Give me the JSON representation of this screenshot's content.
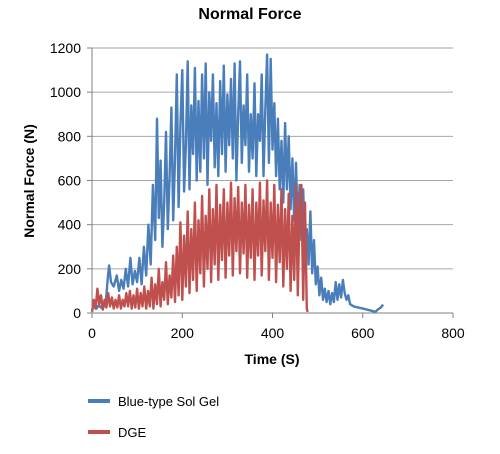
{
  "chart_data": {
    "type": "line",
    "title": "Normal Force",
    "xlabel": "Time (S)",
    "ylabel": "Normal Force (N)",
    "xlim": [
      0,
      800
    ],
    "ylim": [
      0,
      1200
    ],
    "x_ticks": [
      0,
      200,
      400,
      600,
      800
    ],
    "y_ticks": [
      0,
      200,
      400,
      600,
      800,
      1000,
      1200
    ],
    "x_tick_labels": [
      "0",
      "200",
      "400",
      "600",
      "800"
    ],
    "y_tick_labels": [
      "0",
      "200",
      "400",
      "600",
      "800",
      "1000",
      "1200"
    ],
    "grid": "horizontal",
    "legend": "bottom-left",
    "series": [
      {
        "name": "Blue-type Sol Gel",
        "color": "#4a7ebb",
        "points": [
          [
            0,
            10
          ],
          [
            5,
            40
          ],
          [
            10,
            20
          ],
          [
            15,
            35
          ],
          [
            20,
            25
          ],
          [
            25,
            45
          ],
          [
            30,
            30
          ],
          [
            35,
            160
          ],
          [
            38,
            215
          ],
          [
            42,
            140
          ],
          [
            48,
            120
          ],
          [
            55,
            170
          ],
          [
            60,
            100
          ],
          [
            65,
            150
          ],
          [
            70,
            110
          ],
          [
            75,
            200
          ],
          [
            80,
            120
          ],
          [
            85,
            250
          ],
          [
            90,
            130
          ],
          [
            95,
            190
          ],
          [
            100,
            140
          ],
          [
            105,
            250
          ],
          [
            110,
            130
          ],
          [
            115,
            300
          ],
          [
            120,
            170
          ],
          [
            125,
            400
          ],
          [
            130,
            220
          ],
          [
            135,
            580
          ],
          [
            140,
            330
          ],
          [
            144,
            880
          ],
          [
            148,
            430
          ],
          [
            152,
            690
          ],
          [
            156,
            300
          ],
          [
            160,
            500
          ],
          [
            164,
            820
          ],
          [
            168,
            380
          ],
          [
            172,
            620
          ],
          [
            176,
            930
          ],
          [
            180,
            420
          ],
          [
            184,
            700
          ],
          [
            188,
            1080
          ],
          [
            192,
            480
          ],
          [
            196,
            850
          ],
          [
            200,
            1100
          ],
          [
            204,
            550
          ],
          [
            208,
            760
          ],
          [
            212,
            1140
          ],
          [
            216,
            560
          ],
          [
            220,
            940
          ],
          [
            224,
            720
          ],
          [
            228,
            1110
          ],
          [
            232,
            600
          ],
          [
            236,
            960
          ],
          [
            240,
            640
          ],
          [
            244,
            1080
          ],
          [
            248,
            700
          ],
          [
            252,
            1130
          ],
          [
            256,
            580
          ],
          [
            260,
            1000
          ],
          [
            264,
            780
          ],
          [
            268,
            1080
          ],
          [
            272,
            660
          ],
          [
            276,
            950
          ],
          [
            280,
            620
          ],
          [
            284,
            1050
          ],
          [
            288,
            720
          ],
          [
            292,
            1120
          ],
          [
            296,
            640
          ],
          [
            300,
            990
          ],
          [
            304,
            760
          ],
          [
            308,
            1060
          ],
          [
            312,
            700
          ],
          [
            316,
            1130
          ],
          [
            320,
            600
          ],
          [
            324,
            900
          ],
          [
            328,
            1140
          ],
          [
            332,
            680
          ],
          [
            336,
            940
          ],
          [
            340,
            760
          ],
          [
            344,
            1080
          ],
          [
            348,
            640
          ],
          [
            352,
            900
          ],
          [
            356,
            700
          ],
          [
            360,
            1040
          ],
          [
            364,
            620
          ],
          [
            368,
            900
          ],
          [
            372,
            780
          ],
          [
            376,
            1080
          ],
          [
            380,
            620
          ],
          [
            384,
            920
          ],
          [
            388,
            1170
          ],
          [
            392,
            680
          ],
          [
            396,
            1150
          ],
          [
            400,
            740
          ],
          [
            404,
            950
          ],
          [
            408,
            620
          ],
          [
            412,
            880
          ],
          [
            416,
            560
          ],
          [
            420,
            780
          ],
          [
            424,
            500
          ],
          [
            428,
            860
          ],
          [
            432,
            560
          ],
          [
            436,
            800
          ],
          [
            440,
            470
          ],
          [
            444,
            700
          ],
          [
            448,
            420
          ],
          [
            452,
            680
          ],
          [
            456,
            380
          ],
          [
            460,
            580
          ],
          [
            464,
            330
          ],
          [
            468,
            560
          ],
          [
            472,
            280
          ],
          [
            476,
            380
          ],
          [
            480,
            220
          ],
          [
            484,
            460
          ],
          [
            488,
            180
          ],
          [
            492,
            330
          ],
          [
            496,
            130
          ],
          [
            500,
            210
          ],
          [
            504,
            80
          ],
          [
            508,
            160
          ],
          [
            512,
            60
          ],
          [
            516,
            110
          ],
          [
            520,
            50
          ],
          [
            524,
            100
          ],
          [
            528,
            40
          ],
          [
            532,
            90
          ],
          [
            536,
            50
          ],
          [
            540,
            140
          ],
          [
            544,
            60
          ],
          [
            548,
            130
          ],
          [
            552,
            70
          ],
          [
            556,
            150
          ],
          [
            560,
            90
          ],
          [
            564,
            60
          ],
          [
            568,
            80
          ],
          [
            572,
            40
          ],
          [
            580,
            30
          ],
          [
            600,
            20
          ],
          [
            620,
            10
          ],
          [
            628,
            5
          ],
          [
            633,
            15
          ],
          [
            640,
            25
          ],
          [
            645,
            38
          ]
        ]
      },
      {
        "name": "DGE",
        "color": "#c0504d",
        "points": [
          [
            0,
            5
          ],
          [
            4,
            60
          ],
          [
            8,
            20
          ],
          [
            12,
            110
          ],
          [
            16,
            40
          ],
          [
            20,
            80
          ],
          [
            24,
            15
          ],
          [
            28,
            60
          ],
          [
            32,
            25
          ],
          [
            36,
            90
          ],
          [
            40,
            30
          ],
          [
            44,
            70
          ],
          [
            48,
            20
          ],
          [
            52,
            60
          ],
          [
            56,
            25
          ],
          [
            60,
            80
          ],
          [
            64,
            20
          ],
          [
            68,
            60
          ],
          [
            72,
            30
          ],
          [
            76,
            90
          ],
          [
            80,
            30
          ],
          [
            84,
            100
          ],
          [
            88,
            20
          ],
          [
            92,
            80
          ],
          [
            96,
            25
          ],
          [
            100,
            110
          ],
          [
            104,
            20
          ],
          [
            108,
            90
          ],
          [
            112,
            30
          ],
          [
            116,
            120
          ],
          [
            120,
            20
          ],
          [
            124,
            100
          ],
          [
            128,
            30
          ],
          [
            132,
            160
          ],
          [
            136,
            20
          ],
          [
            140,
            130
          ],
          [
            144,
            40
          ],
          [
            148,
            200
          ],
          [
            152,
            30
          ],
          [
            156,
            140
          ],
          [
            160,
            60
          ],
          [
            164,
            230
          ],
          [
            168,
            40
          ],
          [
            172,
            170
          ],
          [
            176,
            70
          ],
          [
            180,
            260
          ],
          [
            184,
            50
          ],
          [
            188,
            300
          ],
          [
            192,
            80
          ],
          [
            196,
            410
          ],
          [
            200,
            60
          ],
          [
            204,
            350
          ],
          [
            208,
            120
          ],
          [
            212,
            460
          ],
          [
            216,
            90
          ],
          [
            220,
            380
          ],
          [
            224,
            150
          ],
          [
            228,
            500
          ],
          [
            232,
            100
          ],
          [
            236,
            420
          ],
          [
            240,
            180
          ],
          [
            244,
            530
          ],
          [
            248,
            120
          ],
          [
            252,
            440
          ],
          [
            256,
            200
          ],
          [
            260,
            560
          ],
          [
            264,
            140
          ],
          [
            268,
            470
          ],
          [
            272,
            220
          ],
          [
            276,
            580
          ],
          [
            280,
            150
          ],
          [
            284,
            490
          ],
          [
            288,
            240
          ],
          [
            292,
            560
          ],
          [
            296,
            160
          ],
          [
            300,
            500
          ],
          [
            304,
            260
          ],
          [
            308,
            590
          ],
          [
            312,
            170
          ],
          [
            316,
            520
          ],
          [
            320,
            280
          ],
          [
            324,
            570
          ],
          [
            328,
            180
          ],
          [
            332,
            500
          ],
          [
            336,
            270
          ],
          [
            340,
            580
          ],
          [
            344,
            160
          ],
          [
            348,
            490
          ],
          [
            352,
            250
          ],
          [
            356,
            560
          ],
          [
            360,
            150
          ],
          [
            364,
            500
          ],
          [
            368,
            260
          ],
          [
            372,
            590
          ],
          [
            376,
            170
          ],
          [
            380,
            510
          ],
          [
            384,
            280
          ],
          [
            388,
            600
          ],
          [
            392,
            150
          ],
          [
            396,
            500
          ],
          [
            400,
            250
          ],
          [
            404,
            580
          ],
          [
            408,
            140
          ],
          [
            412,
            490
          ],
          [
            416,
            230
          ],
          [
            420,
            560
          ],
          [
            424,
            120
          ],
          [
            428,
            470
          ],
          [
            432,
            200
          ],
          [
            436,
            540
          ],
          [
            440,
            100
          ],
          [
            444,
            440
          ],
          [
            448,
            150
          ],
          [
            452,
            580
          ],
          [
            456,
            80
          ],
          [
            460,
            480
          ],
          [
            464,
            580
          ],
          [
            468,
            60
          ],
          [
            472,
            500
          ],
          [
            476,
            20
          ],
          [
            478,
            5
          ]
        ]
      }
    ]
  }
}
